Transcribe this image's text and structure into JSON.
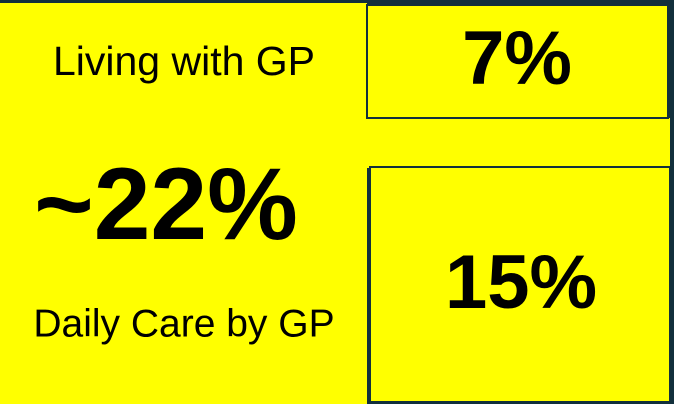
{
  "tiles": {
    "living": {
      "label": "Living with GP",
      "value": "7%"
    },
    "daily": {
      "value": "~22%",
      "label": "Daily Care by GP",
      "side_value": "15%"
    }
  }
}
